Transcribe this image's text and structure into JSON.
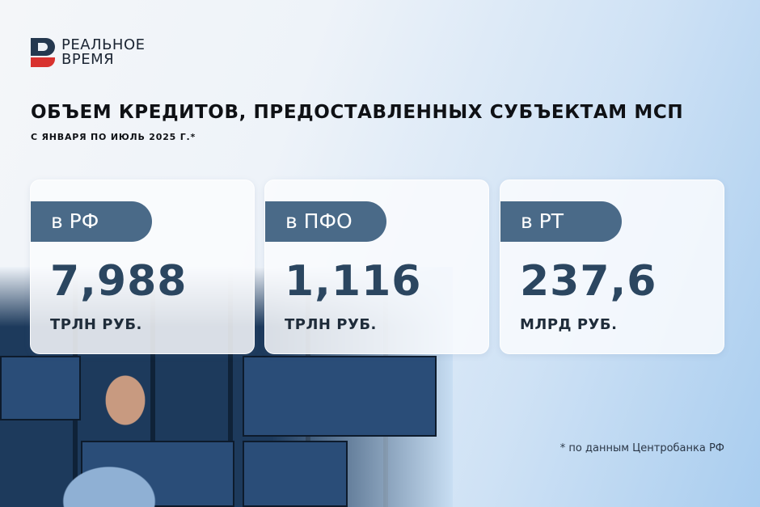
{
  "logo": {
    "line1": "РЕАЛЬНОЕ",
    "line2": "ВРЕМЯ"
  },
  "header": {
    "title": "ОБЪЕМ КРЕДИТОВ, ПРЕДОСТАВЛЕННЫХ СУБЪЕКТАМ МСП",
    "subtitle": "С ЯНВАРЯ ПО ИЮЛЬ 2025 Г.*"
  },
  "cards": [
    {
      "label": "в РФ",
      "value": "7,988",
      "unit": "ТРЛН РУБ."
    },
    {
      "label": "в ПФО",
      "value": "1,116",
      "unit": "ТРЛН РУБ."
    },
    {
      "label": "в РТ",
      "value": "237,6",
      "unit": "МЛРД РУБ."
    }
  ],
  "footnote": "* по данным Центробанка РФ",
  "colors": {
    "pill": "#4a6a88",
    "value": "#2b4660",
    "logo_red": "#d8322f",
    "logo_dark": "#24384f"
  }
}
